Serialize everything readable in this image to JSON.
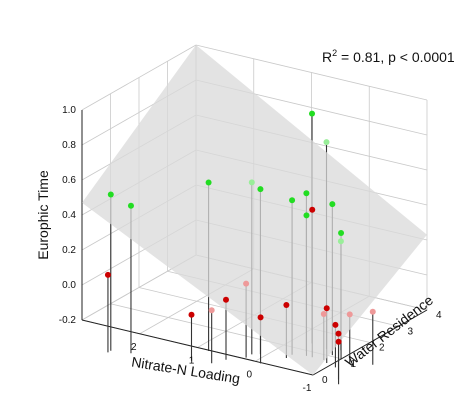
{
  "chart_data": {
    "type": "scatter",
    "subtype": "3d-scatter-with-regression-plane",
    "annotation": {
      "r_label": "R",
      "r_exponent": "2",
      "text": " = 0.81, p < 0.0001"
    },
    "zlabel": "Europhic Time",
    "xlabel": "Nitrate-N Loading",
    "ylabel": "Water Residence",
    "zlim": [
      -0.2,
      1.0
    ],
    "xlim": [
      -1,
      3
    ],
    "ylim": [
      0,
      4
    ],
    "z_ticks": [
      "1.0",
      "0.8",
      "0.6",
      "0.4",
      "0.2",
      "0.0",
      "-0.2"
    ],
    "x_ticks": [
      "2",
      "1",
      "0",
      "-1"
    ],
    "y_ticks": [
      "0",
      "1",
      "2",
      "3",
      "4"
    ],
    "grid": true,
    "regression_plane": true,
    "colors": {
      "high": "#22dd22",
      "mid": "#99ee99",
      "low": "#cc0000",
      "low_mid": "#ee9999",
      "plane": "#d9d9d9",
      "stem": "#333333"
    },
    "points": [
      {
        "x": 2.6,
        "y": 0.2,
        "z": 0.53,
        "group": "high"
      },
      {
        "x": 2.3,
        "y": 0.3,
        "z": 0.48,
        "group": "high"
      },
      {
        "x": 1.4,
        "y": 1.2,
        "z": 0.6,
        "group": "high"
      },
      {
        "x": 0.3,
        "y": 2.6,
        "z": 0.95,
        "group": "high"
      },
      {
        "x": 0.0,
        "y": 2.5,
        "z": 0.82,
        "group": "mid"
      },
      {
        "x": 0.7,
        "y": 1.6,
        "z": 0.58,
        "group": "high"
      },
      {
        "x": 0.8,
        "y": 1.5,
        "z": 0.62,
        "group": "mid"
      },
      {
        "x": 0.3,
        "y": 1.9,
        "z": 0.52,
        "group": "high"
      },
      {
        "x": 0.2,
        "y": 2.2,
        "z": 0.54,
        "group": "high"
      },
      {
        "x": 0.1,
        "y": 2.0,
        "z": 0.44,
        "group": "high"
      },
      {
        "x": -0.2,
        "y": 2.3,
        "z": 0.5,
        "group": "high"
      },
      {
        "x": -0.4,
        "y": 2.2,
        "z": 0.36,
        "group": "high"
      },
      {
        "x": 0.0,
        "y": 2.0,
        "z": 0.48,
        "group": "low"
      },
      {
        "x": -0.2,
        "y": 2.6,
        "z": 0.26,
        "group": "mid"
      },
      {
        "x": 2.6,
        "y": 0.1,
        "z": 0.08,
        "group": "low"
      },
      {
        "x": 1.4,
        "y": 0.6,
        "z": -0.1,
        "group": "low"
      },
      {
        "x": 1.1,
        "y": 0.7,
        "z": -0.06,
        "group": "low_mid"
      },
      {
        "x": 1.0,
        "y": 1.0,
        "z": -0.02,
        "group": "low"
      },
      {
        "x": 0.8,
        "y": 1.3,
        "z": 0.06,
        "group": "low_mid"
      },
      {
        "x": 0.5,
        "y": 1.2,
        "z": -0.1,
        "group": "low"
      },
      {
        "x": 0.3,
        "y": 1.7,
        "z": -0.06,
        "group": "low"
      },
      {
        "x": -0.3,
        "y": 1.9,
        "z": -0.05,
        "group": "low"
      },
      {
        "x": -0.2,
        "y": 2.0,
        "z": -0.1,
        "group": "low_mid"
      },
      {
        "x": -0.5,
        "y": 1.8,
        "z": -0.12,
        "group": "low"
      },
      {
        "x": -0.6,
        "y": 2.1,
        "z": -0.08,
        "group": "low_mid"
      },
      {
        "x": -0.9,
        "y": 2.3,
        "z": -0.06,
        "group": "low_mid"
      },
      {
        "x": -0.8,
        "y": 1.3,
        "z": -0.1,
        "group": "low"
      },
      {
        "x": -0.9,
        "y": 1.1,
        "z": -0.12,
        "group": "low"
      }
    ]
  }
}
